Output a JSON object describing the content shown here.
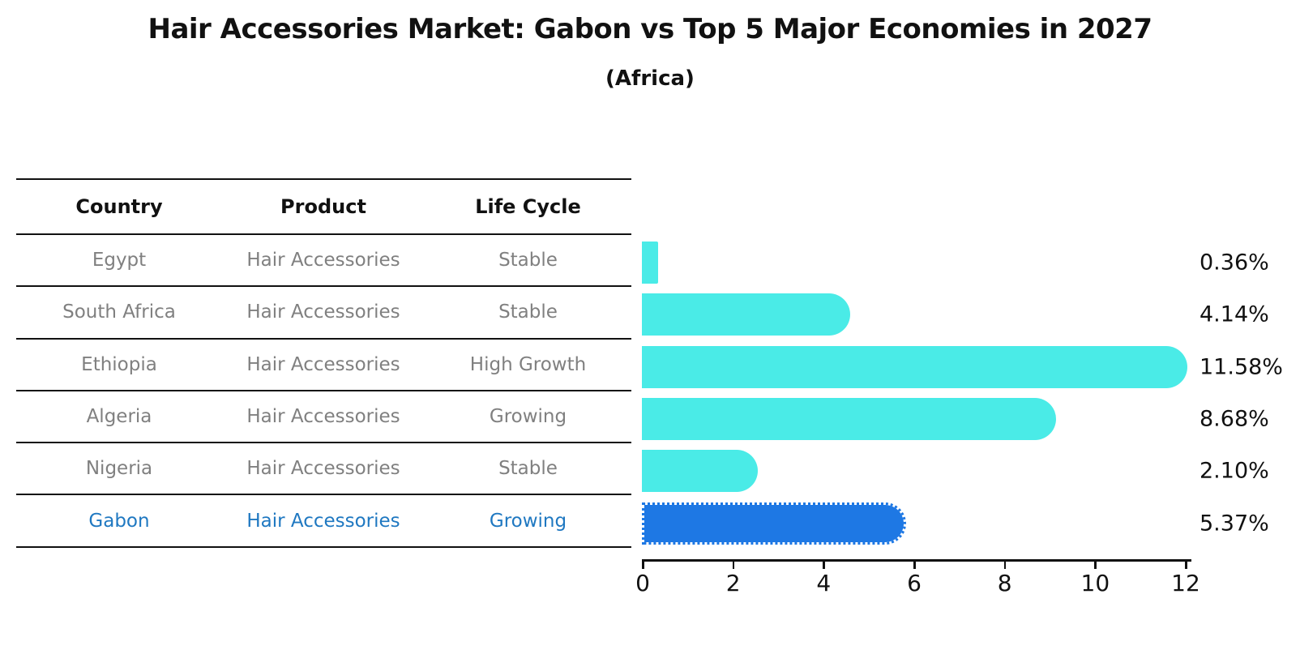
{
  "title": "Hair Accessories Market: Gabon vs Top 5 Major Economies in 2027",
  "subtitle": "(Africa)",
  "table": {
    "headers": [
      "Country",
      "Product",
      "Life Cycle"
    ],
    "rows": [
      {
        "country": "Egypt",
        "product": "Hair Accessories",
        "life_cycle": "Stable",
        "highlight": false
      },
      {
        "country": "South Africa",
        "product": "Hair Accessories",
        "life_cycle": "Stable",
        "highlight": false
      },
      {
        "country": "Ethiopia",
        "product": "Hair Accessories",
        "life_cycle": "High Growth",
        "highlight": false
      },
      {
        "country": "Algeria",
        "product": "Hair Accessories",
        "life_cycle": "Growing",
        "highlight": false
      },
      {
        "country": "Nigeria",
        "product": "Hair Accessories",
        "life_cycle": "Stable",
        "highlight": true
      }
    ],
    "highlight_row": {
      "country": "Gabon",
      "product": "Hair Accessories",
      "life_cycle": "Growing"
    }
  },
  "chart_data": {
    "type": "bar",
    "orientation": "horizontal",
    "title": "Hair Accessories Market: Gabon vs Top 5 Major Economies in 2027",
    "subtitle": "(Africa)",
    "categories": [
      "Egypt",
      "South Africa",
      "Ethiopia",
      "Algeria",
      "Nigeria",
      "Gabon"
    ],
    "values": [
      0.36,
      4.14,
      11.58,
      8.68,
      2.1,
      5.37
    ],
    "value_labels": [
      "0.36%",
      "4.14%",
      "11.58%",
      "8.68%",
      "2.10%",
      "5.37%"
    ],
    "xlabel": "",
    "ylabel": "",
    "xlim": [
      0,
      12
    ],
    "xticks": [
      "0",
      "2",
      "4",
      "6",
      "8",
      "10",
      "12"
    ],
    "grid": false,
    "legend": false,
    "highlight_index": 5
  },
  "colors": {
    "bar": "#4AEBE7",
    "highlight_bar": "#1E78E4",
    "highlight_text": "#1f78c1",
    "text": "#111111",
    "muted_text": "#808080"
  }
}
